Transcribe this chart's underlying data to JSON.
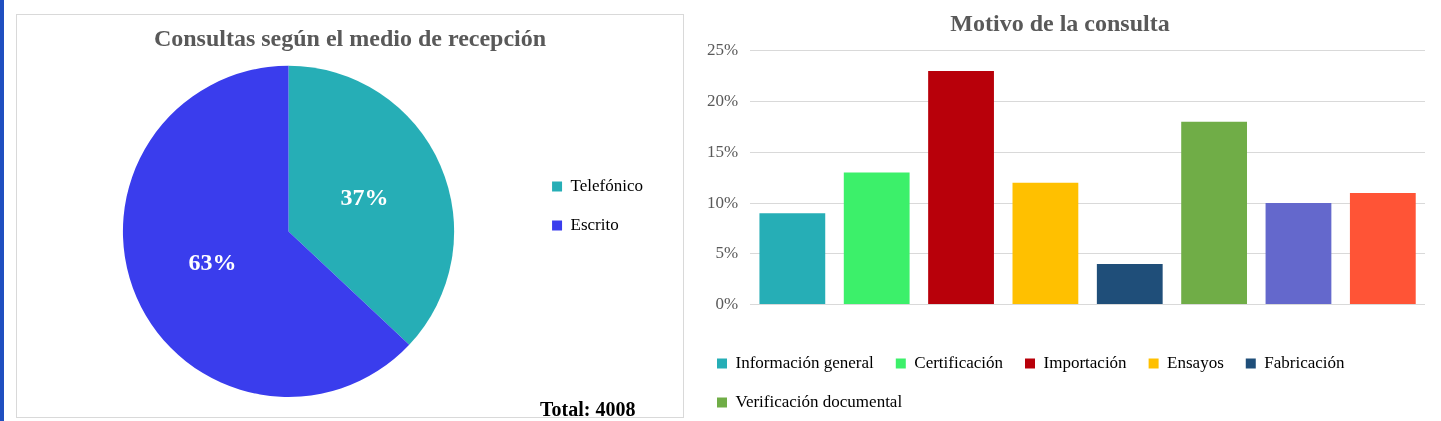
{
  "chart_data": [
    {
      "type": "pie",
      "title": "Consultas según el medio de recepción",
      "categories": [
        "Telefónico",
        "Escrito"
      ],
      "values": [
        37,
        63
      ],
      "colors": [
        "#26aeb6",
        "#3a3ded"
      ],
      "value_labels": [
        "37%",
        "63%"
      ],
      "legend": "right",
      "annotations": [
        "Total: 4008"
      ]
    },
    {
      "type": "bar",
      "title": "Motivo de la consulta",
      "categories": [
        null,
        null,
        null,
        null,
        null,
        null,
        null,
        null
      ],
      "series": [
        {
          "name": "Información general",
          "color": "#26aeb6",
          "values": [
            9,
            null,
            null,
            null,
            null,
            null,
            null,
            null
          ]
        },
        {
          "name": "Certificación",
          "color": "#3cf06a",
          "values": [
            null,
            13,
            null,
            null,
            null,
            null,
            null,
            null
          ]
        },
        {
          "name": "Importación",
          "color": "#b8000a",
          "values": [
            null,
            null,
            23,
            null,
            null,
            null,
            null,
            null
          ]
        },
        {
          "name": "Ensayos",
          "color": "#ffc000",
          "values": [
            null,
            null,
            null,
            12,
            null,
            null,
            null,
            null
          ]
        },
        {
          "name": "Fabricación",
          "color": "#1f4e79",
          "values": [
            null,
            null,
            null,
            null,
            4,
            null,
            null,
            null
          ]
        },
        {
          "name": "Verificación documental",
          "color": "#70ad47",
          "values": [
            null,
            null,
            null,
            null,
            null,
            18,
            null,
            null
          ]
        },
        {
          "color": "#6468cc",
          "values": [
            null,
            null,
            null,
            null,
            null,
            null,
            10,
            null
          ]
        },
        {
          "color": "#ff5436",
          "values": [
            null,
            null,
            null,
            null,
            null,
            null,
            null,
            11
          ]
        }
      ],
      "ylim": [
        0,
        25
      ],
      "yticks": [
        {
          "value": 0,
          "label": "0%"
        },
        {
          "value": 5,
          "label": "5%"
        },
        {
          "value": 10,
          "label": "10%"
        },
        {
          "value": 15,
          "label": "15%"
        },
        {
          "value": 20,
          "label": "20%"
        },
        {
          "value": 25,
          "label": "25%"
        }
      ],
      "grid": "y",
      "legend": "bottom"
    }
  ]
}
